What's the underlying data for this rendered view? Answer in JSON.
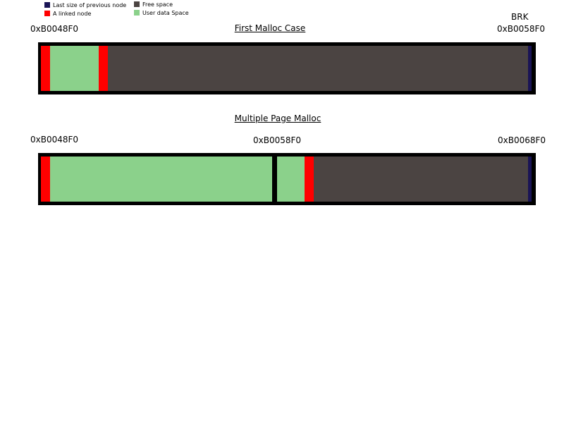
{
  "colors": {
    "last_size": "#1a1456",
    "linked_node": "#ff0000",
    "free_space": "#4b4442",
    "user_data": "#8bd18b",
    "border": "#000000"
  },
  "legend": {
    "last_size_label": "Last size of previous node",
    "linked_node_label": "A linked node",
    "free_space_label": "Free space",
    "user_data_label": "User data Space"
  },
  "first_case": {
    "title": "First Malloc Case",
    "start_addr": "0xB0048F0",
    "end_addr": "0xB0058F0",
    "brk_label": "BRK"
  },
  "multi_case": {
    "title": "Multiple Page Malloc",
    "addr_start": "0xB0048F0",
    "addr_mid": "0xB0058F0",
    "addr_end": "0xB0068F0"
  }
}
